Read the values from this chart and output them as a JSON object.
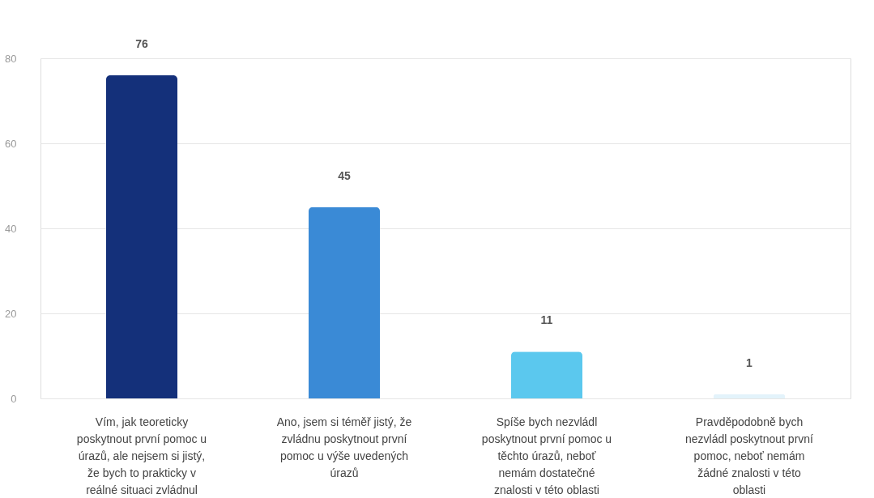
{
  "chart_data": {
    "type": "bar",
    "categories": [
      "Vím, jak teoreticky\nposkytnout první pomoc u\núrazů, ale nejsem si jistý,\nže bych to prakticky v\nreálné situaci zvládnul",
      "Ano, jsem si téměř jistý, že\nzvládnu poskytnout první\npomoc u výše uvedených\núrazů",
      "Spíše bych nezvládl\nposkytnout první pomoc u\ntěchto úrazů, neboť\nnemám dostatečné\nznalosti v této oblasti",
      "Pravděpodobně bych\nnezvládl poskytnout první\npomoc, neboť nemám\nžádné znalosti v této\noblasti"
    ],
    "values": [
      76,
      45,
      11,
      1
    ],
    "colors": [
      "#14307a",
      "#3a8ad6",
      "#5bc8ee",
      "#e3f3fb"
    ],
    "ylim": [
      0,
      80
    ],
    "yticks": [
      0,
      20,
      40,
      60,
      80
    ],
    "grid": "y",
    "data_labels": true,
    "legend": false
  }
}
